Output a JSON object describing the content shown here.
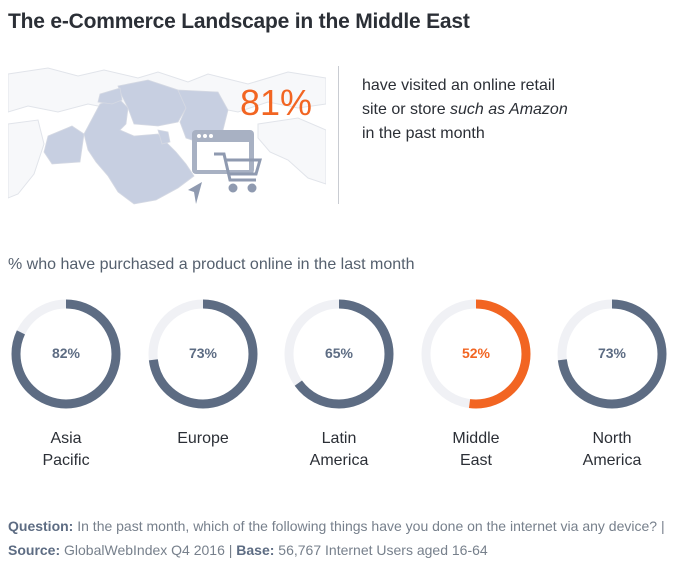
{
  "title": "The e-Commerce Landscape in the Middle East",
  "hero": {
    "percent": "81%",
    "line1": "have visited an online retail",
    "line2_prefix": "site or store ",
    "line2_italic": "such as Amazon",
    "line3": "in the past month"
  },
  "subtitle": "% who have purchased a product online in the last month",
  "colors": {
    "default": "#5d6c83",
    "highlight": "#f26522",
    "track": "#f0f1f5"
  },
  "icons": [
    "middle-east-map-icon",
    "shopping-cart-icon",
    "cursor-icon"
  ],
  "chart_data": {
    "type": "donut",
    "title": "% who have purchased a product online in the last month",
    "categories": [
      "Asia Pacific",
      "Europe",
      "Latin America",
      "Middle East",
      "North America"
    ],
    "values": [
      82,
      73,
      65,
      52,
      73
    ],
    "highlight_index": 3,
    "items": [
      {
        "label_lines": [
          "Asia",
          "Pacific"
        ],
        "value": 82,
        "value_label": "82%"
      },
      {
        "label_lines": [
          "Europe"
        ],
        "value": 73,
        "value_label": "73%"
      },
      {
        "label_lines": [
          "Latin",
          "America"
        ],
        "value": 65,
        "value_label": "65%"
      },
      {
        "label_lines": [
          "Middle",
          "East"
        ],
        "value": 52,
        "value_label": "52%"
      },
      {
        "label_lines": [
          "North",
          "America"
        ],
        "value": 73,
        "value_label": "73%"
      }
    ]
  },
  "footer": {
    "question_label": "Question:",
    "question_text": " In the past month, which of the following things have you done on the internet via any device?  |  ",
    "source_label": "Source:",
    "source_text": " GlobalWebIndex Q4 2016  |  ",
    "base_label": "Base:",
    "base_text": " 56,767 Internet Users aged 16-64"
  }
}
